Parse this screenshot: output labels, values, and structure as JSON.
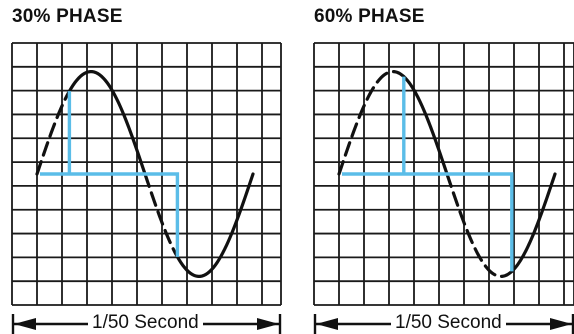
{
  "panels": [
    {
      "title": "30% PHASE",
      "caption": "1/50 Second",
      "phase_percent": 30
    },
    {
      "title": "60% PHASE",
      "caption": "1/50 Second",
      "phase_percent": 60
    }
  ],
  "colors": {
    "grid": "#1a1a1a",
    "wave": "#111111",
    "trigger": "#5bbde8",
    "background": "#ffffff"
  }
}
